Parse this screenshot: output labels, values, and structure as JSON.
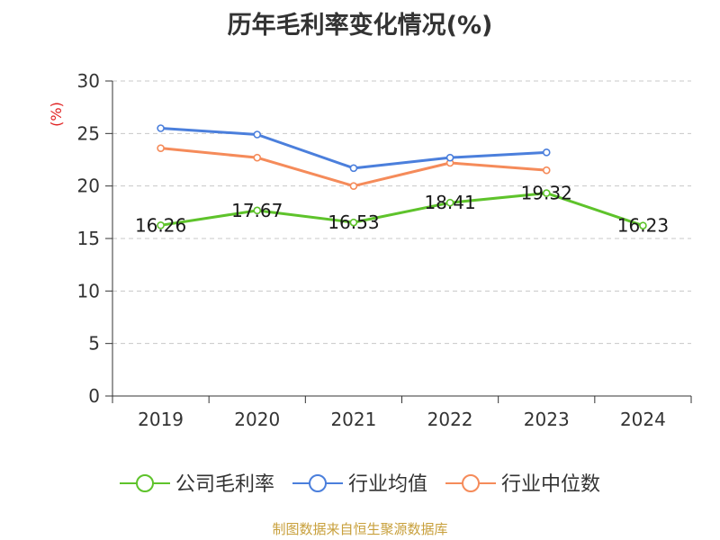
{
  "chart_data": {
    "type": "line",
    "title": "历年毛利率变化情况(%)",
    "ylabel": "(%)",
    "xlabel": "",
    "categories": [
      "2019",
      "2020",
      "2021",
      "2022",
      "2023",
      "2024"
    ],
    "ylim": [
      0,
      30
    ],
    "yticks": [
      0,
      5,
      10,
      15,
      20,
      25,
      30
    ],
    "grid": "horizontal dashed",
    "legend_position": "bottom",
    "series": [
      {
        "name": "公司毛利率",
        "color": "#5ec32b",
        "values": [
          16.26,
          17.67,
          16.53,
          18.41,
          19.32,
          16.23
        ],
        "labels": [
          "16.26",
          "17.67",
          "16.53",
          "18.41",
          "19.32",
          "16.23"
        ]
      },
      {
        "name": "行业均值",
        "color": "#4b7fdc",
        "values": [
          25.5,
          24.9,
          21.7,
          22.7,
          23.2,
          null
        ]
      },
      {
        "name": "行业中位数",
        "color": "#f58b5a",
        "values": [
          23.6,
          22.7,
          20.0,
          22.2,
          21.5,
          null
        ]
      }
    ]
  },
  "source_note": "制图数据来自恒生聚源数据库"
}
